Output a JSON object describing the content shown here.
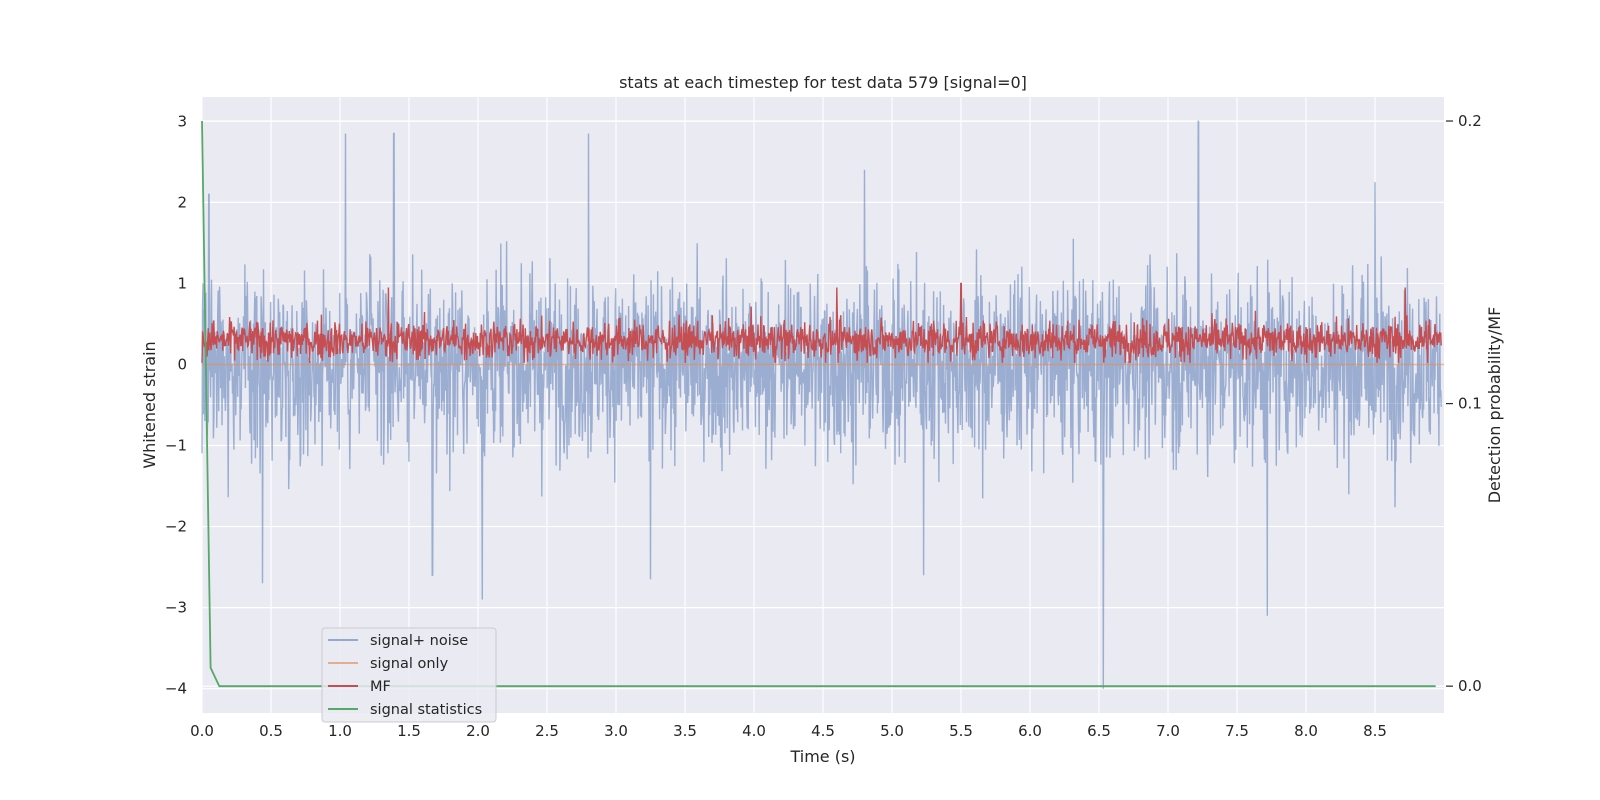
{
  "chart_data": {
    "type": "line",
    "title": "stats at each timestep for test data 579 [signal=0]",
    "xlabel": "Time (s)",
    "ylabel": "Whitened strain",
    "y2label": "Detection probability/MF",
    "xlim": [
      0.0,
      9.0
    ],
    "ylim": [
      -4.3,
      3.3
    ],
    "y2lim": [
      -0.0095,
      0.2085
    ],
    "xticks": [
      0.0,
      0.5,
      1.0,
      1.5,
      2.0,
      2.5,
      3.0,
      3.5,
      4.0,
      4.5,
      5.0,
      5.5,
      6.0,
      6.5,
      7.0,
      7.5,
      8.0,
      8.5
    ],
    "xtick_labels": [
      "0.0",
      "0.5",
      "1.0",
      "1.5",
      "2.0",
      "2.5",
      "3.0",
      "3.5",
      "4.0",
      "4.5",
      "5.0",
      "5.5",
      "6.0",
      "6.5",
      "7.0",
      "7.5",
      "8.0",
      "8.5"
    ],
    "yticks": [
      -4,
      -3,
      -2,
      -1,
      0,
      1,
      2,
      3
    ],
    "ytick_labels": [
      "−4",
      "−3",
      "−2",
      "−1",
      "0",
      "1",
      "2",
      "3"
    ],
    "y2ticks": [
      0.0,
      0.1,
      0.2
    ],
    "y2tick_labels": [
      "0.0",
      "0.1",
      "0.2"
    ],
    "grid": true,
    "legend_position": "bottom-left",
    "series": [
      {
        "name": "signal+ noise",
        "axis": "left",
        "color": "#4c72b0",
        "alpha": 0.5,
        "description": "dense noisy whitened strain, range roughly -4 to 3",
        "peaks": [
          [
            0.05,
            2.1
          ],
          [
            0.44,
            -2.7
          ],
          [
            1.04,
            2.85
          ],
          [
            1.39,
            2.85
          ],
          [
            1.67,
            -2.6
          ],
          [
            2.03,
            -2.9
          ],
          [
            2.8,
            2.85
          ],
          [
            3.25,
            -2.65
          ],
          [
            4.8,
            2.4
          ],
          [
            5.23,
            -2.6
          ],
          [
            6.53,
            -4.0
          ],
          [
            7.22,
            3.0
          ],
          [
            7.72,
            -3.1
          ],
          [
            8.5,
            2.25
          ]
        ]
      },
      {
        "name": "signal only",
        "axis": "left",
        "color": "#dd8452",
        "values_note": "flat at 0 across the whole time range",
        "x": [
          0.0,
          9.0
        ],
        "y": [
          0.0,
          0.0
        ]
      },
      {
        "name": "MF",
        "axis": "left",
        "color": "#c44e52",
        "description": "noisy band mostly between 0 and 0.7",
        "peaks": [
          [
            1.35,
            0.95
          ],
          [
            4.6,
            0.95
          ],
          [
            5.5,
            1.0
          ],
          [
            8.72,
            0.95
          ]
        ]
      },
      {
        "name": "signal statistics",
        "axis": "right",
        "color": "#55a868",
        "x": [
          0.0,
          0.0625,
          0.125,
          0.25,
          1.0,
          2.0,
          4.0,
          6.0,
          8.0,
          8.94
        ],
        "y": [
          0.2,
          0.0065,
          0.0,
          0.0,
          0.0,
          0.0,
          0.0,
          0.0,
          0.0,
          0.0
        ]
      }
    ]
  }
}
